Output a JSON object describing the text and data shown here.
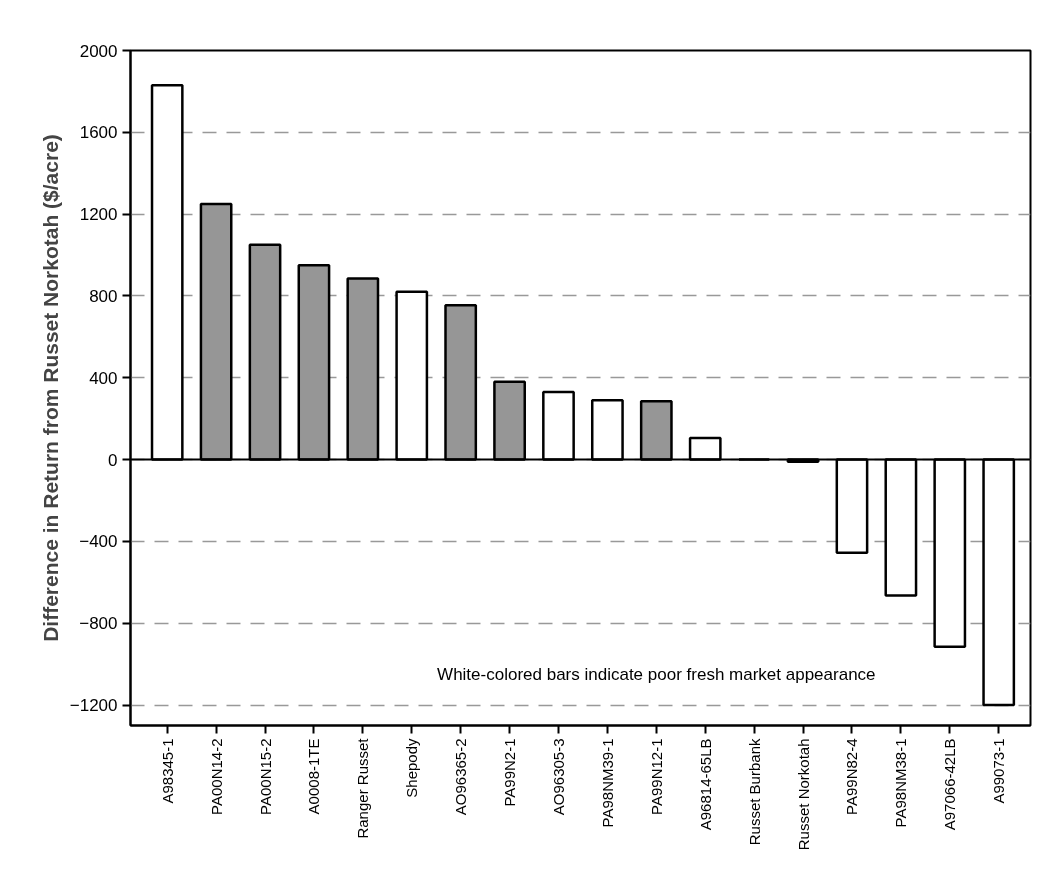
{
  "chart_data": {
    "type": "bar",
    "ylabel": "Difference in Return from Russet Norkotah ($/acre)",
    "categories": [
      "A98345-1",
      "PA00N14-2",
      "PA00N15-2",
      "A0008-1TE",
      "Ranger Russet",
      "Shepody",
      "AO96365-2",
      "PA99N2-1",
      "AO96305-3",
      "PA98NM39-1",
      "PA99N12-1",
      "A96814-65LB",
      "Russet Burbank",
      "Russet Norkotah",
      "PA99N82-4",
      "PA98NM38-1",
      "A97066-42LB",
      "A99073-1"
    ],
    "values": [
      1830,
      1250,
      1050,
      950,
      885,
      820,
      755,
      380,
      330,
      290,
      285,
      105,
      0,
      -10,
      -455,
      -665,
      -915,
      -1200
    ],
    "colors": [
      "#ffffff",
      "#969696",
      "#969696",
      "#969696",
      "#969696",
      "#ffffff",
      "#969696",
      "#969696",
      "#ffffff",
      "#ffffff",
      "#969696",
      "#ffffff",
      "#000000",
      "#ffffff",
      "#ffffff",
      "#ffffff",
      "#ffffff",
      "#ffffff"
    ],
    "ylim": [
      -1300,
      2000
    ],
    "yticks": [
      -1200,
      -800,
      -400,
      0,
      400,
      800,
      1200,
      1600,
      2000
    ],
    "grid": "y",
    "ref_lines": [
      {
        "axis": "y",
        "value": 0,
        "color": "#000000",
        "line_style": "solid"
      }
    ],
    "annotations": [
      "White-colored bars indicate poor fresh market appearance"
    ]
  }
}
